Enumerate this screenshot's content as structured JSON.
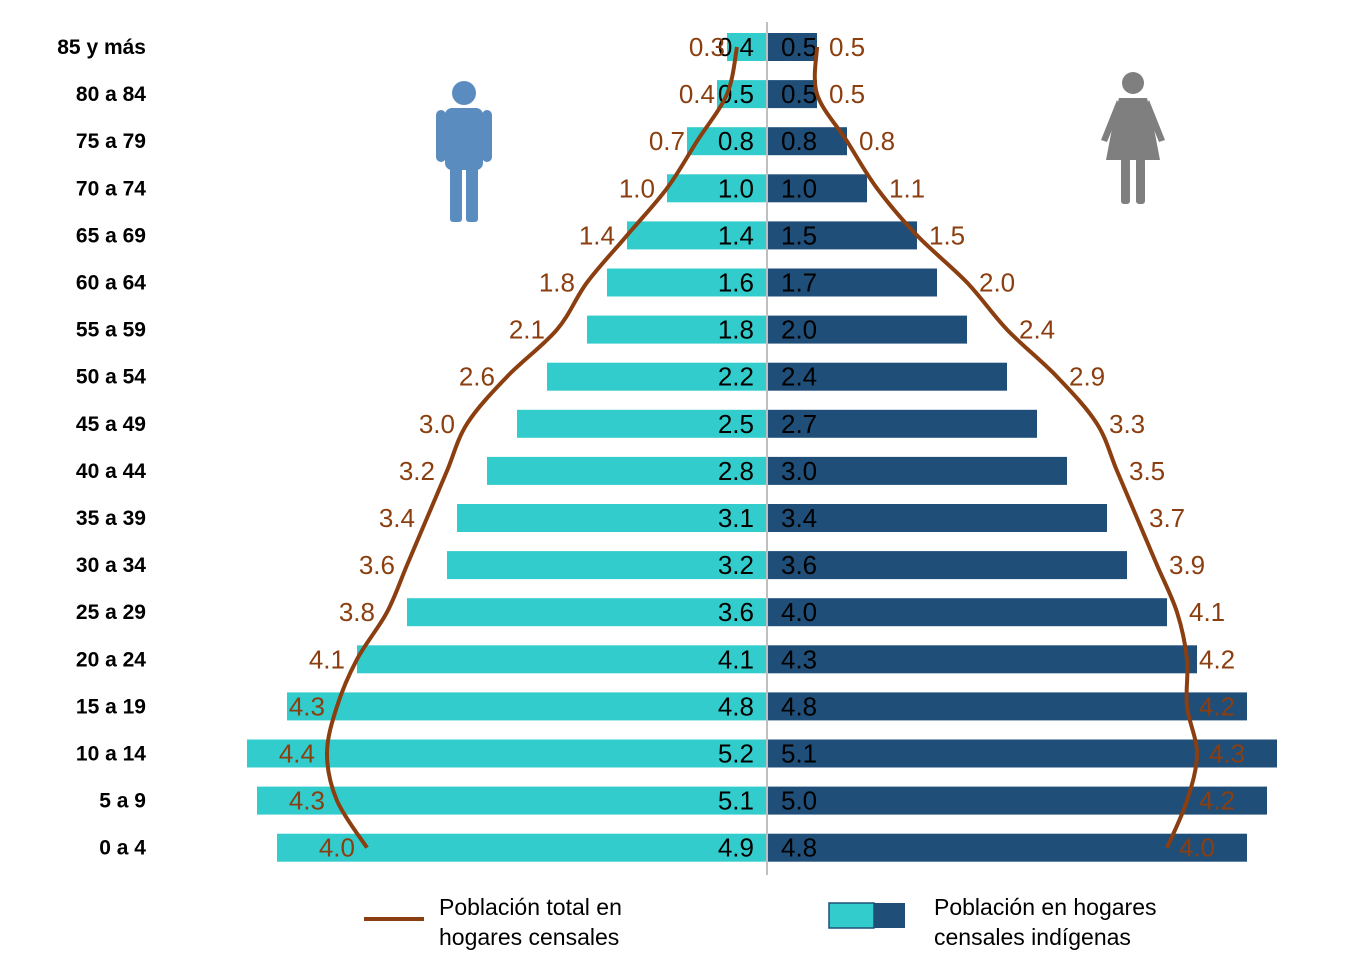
{
  "chart_data": {
    "type": "bar",
    "subtype": "population-pyramid",
    "title": "",
    "xlabel": "",
    "ylabel": "",
    "categories": [
      "85 y más",
      "80 a 84",
      "75 a 79",
      "70 a 74",
      "65 a 69",
      "60 a 64",
      "55 a 59",
      "50 a 54",
      "45 a 49",
      "40 a 44",
      "35 a 39",
      "30 a 34",
      "25 a 29",
      "20 a 24",
      "15 a 19",
      "10 a 14",
      "5 a 9",
      "0 a 4"
    ],
    "series": [
      {
        "name": "Población en hogares censales indígenas",
        "side": "left",
        "values": [
          0.4,
          0.5,
          0.8,
          1.0,
          1.4,
          1.6,
          1.8,
          2.2,
          2.5,
          2.8,
          3.1,
          3.2,
          3.6,
          4.1,
          4.8,
          5.2,
          5.1,
          4.9
        ],
        "color": "#33CCCC"
      },
      {
        "name": "Población en hogares censales indígenas",
        "side": "right",
        "values": [
          0.5,
          0.5,
          0.8,
          1.0,
          1.5,
          1.7,
          2.0,
          2.4,
          2.7,
          3.0,
          3.4,
          3.6,
          4.0,
          4.3,
          4.8,
          5.1,
          5.0,
          4.8
        ],
        "color": "#1F4E79"
      },
      {
        "name": "Población total en hogares censales",
        "side": "left",
        "values": [
          0.3,
          0.4,
          0.7,
          1.0,
          1.4,
          1.8,
          2.1,
          2.6,
          3.0,
          3.2,
          3.4,
          3.6,
          3.8,
          4.1,
          4.3,
          4.4,
          4.3,
          4.0
        ],
        "color": "#8B3E0F"
      },
      {
        "name": "Población total en hogares censales",
        "side": "right",
        "values": [
          0.5,
          0.5,
          0.8,
          1.1,
          1.5,
          2.0,
          2.4,
          2.9,
          3.3,
          3.5,
          3.7,
          3.9,
          4.1,
          4.2,
          4.2,
          4.3,
          4.2,
          4.0
        ],
        "color": "#8B3E0F"
      }
    ],
    "grid": false,
    "legend_position": "bottom"
  },
  "legend": {
    "total_line_1": "Población total en",
    "total_line_2": "hogares censales",
    "indigena_line_1": "Población en hogares",
    "indigena_line_2": "censales indígenas"
  },
  "colors": {
    "left_bar": "#33CCCC",
    "right_bar": "#1F4E79",
    "total_line": "#8B3E0F",
    "male_icon": "#5B8CBF",
    "female_icon": "#7F7F7F"
  },
  "icons": {
    "left": "male-person-icon",
    "right": "female-person-icon"
  }
}
